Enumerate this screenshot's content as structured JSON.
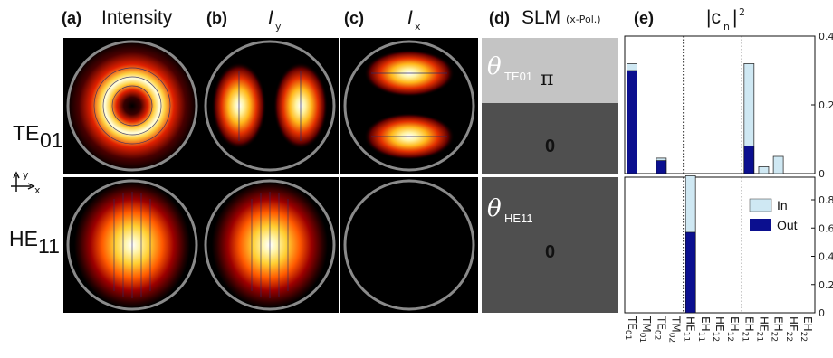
{
  "panels": {
    "a": {
      "letter": "(a)",
      "title": "Intensity"
    },
    "b": {
      "letter": "(b)",
      "title": "I",
      "sub": "y"
    },
    "c": {
      "letter": "(c)",
      "title": "I",
      "sub": "x"
    },
    "d": {
      "letter": "(d)",
      "title": "SLM",
      "note": "(x-Pol.)"
    },
    "e": {
      "letter": "(e)",
      "title": "|c",
      "sub": "n",
      "sup": "2",
      "suffix": "|"
    }
  },
  "rows": [
    {
      "base": "TE",
      "sub": "01",
      "theta_sub": "TE01",
      "slm_top": "π",
      "slm_bottom": "0"
    },
    {
      "base": "HE",
      "sub": "11",
      "theta_sub": "HE11",
      "slm_value": "0"
    }
  ],
  "axes_icon": {
    "y": "y",
    "x": "x"
  },
  "colors": {
    "in": "#cfe8f3",
    "out": "#0b0f8f",
    "slm_light": "#c4c4c4",
    "slm_dark": "#4f4f4f"
  },
  "chart_data": {
    "type": "bar",
    "modes": [
      {
        "base": "TE",
        "sub": "01"
      },
      {
        "base": "TM",
        "sub": "01"
      },
      {
        "base": "TE",
        "sub": "02"
      },
      {
        "base": "TM",
        "sub": "02"
      },
      {
        "base": "HE",
        "sub": "11"
      },
      {
        "base": "EH",
        "sub": "11"
      },
      {
        "base": "HE",
        "sub": "12"
      },
      {
        "base": "EH",
        "sub": "12"
      },
      {
        "base": "EH",
        "sub": "21"
      },
      {
        "base": "HE",
        "sub": "21"
      },
      {
        "base": "EH",
        "sub": "22"
      },
      {
        "base": "HE",
        "sub": "22"
      },
      {
        "base": "EH",
        "sub": "22"
      }
    ],
    "legend": [
      "In",
      "Out"
    ],
    "subplots": [
      {
        "row": "TE01",
        "ylim": [
          0,
          0.4
        ],
        "yticks": [
          0,
          0.2,
          0.4
        ],
        "ytick_labels": [
          "0",
          "0.2",
          "0.4"
        ],
        "bars": [
          {
            "mode": 0,
            "in": 0.32,
            "out": 0.3
          },
          {
            "mode": 2,
            "in": 0.045,
            "out": 0.038
          },
          {
            "mode": 8,
            "in": 0.32,
            "out": 0.08
          },
          {
            "mode": 9,
            "in": 0.02,
            "out": 0
          },
          {
            "mode": 10,
            "in": 0.05,
            "out": 0
          }
        ]
      },
      {
        "row": "HE11",
        "ylim": [
          0,
          0.96
        ],
        "yticks": [
          0,
          0.2,
          0.4,
          0.6,
          0.8
        ],
        "ytick_labels": [
          "0",
          "0.2",
          "0.4",
          "0.6",
          "0.8"
        ],
        "bars": [
          {
            "mode": 4,
            "in": 0.97,
            "out": 0.57
          }
        ]
      }
    ]
  }
}
